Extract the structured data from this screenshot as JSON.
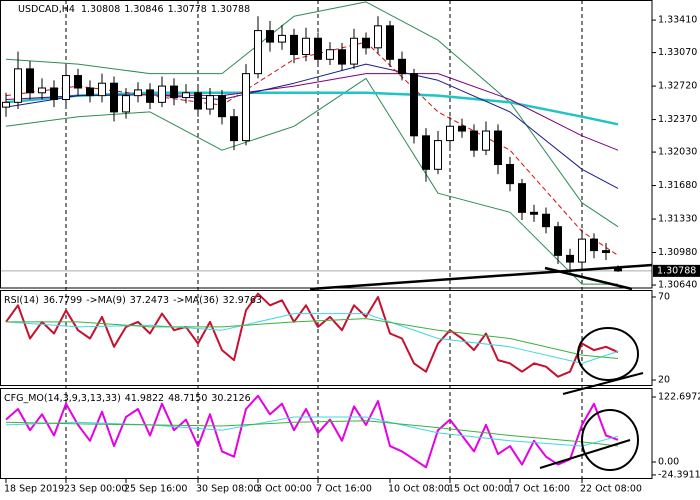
{
  "chart_data": [
    {
      "type": "candlestick",
      "title": "USDCAD,H4",
      "categories": [
        "18 Sep 2019",
        null,
        null,
        null,
        null,
        "23 Sep 00:00",
        null,
        null,
        null,
        null,
        "25 Sep 16:00",
        null,
        null,
        null,
        null,
        null,
        "30 Sep 08:00",
        null,
        null,
        null,
        null,
        "3 Oct 00:00",
        null,
        null,
        null,
        null,
        "7 Oct 16:00",
        null,
        null,
        null,
        null,
        null,
        "10 Oct 08:00",
        null,
        null,
        null,
        null,
        "15 Oct 00:00",
        null,
        null,
        null,
        null,
        "17 Oct 16:00",
        null,
        null,
        null,
        null,
        null,
        "22 Oct 08:00",
        null,
        null,
        null
      ],
      "open": [
        1.325,
        1.3255,
        1.329,
        1.3265,
        1.327,
        1.3258,
        1.3283,
        1.327,
        1.3262,
        1.3275,
        1.3245,
        1.3262,
        1.3268,
        1.3255,
        1.3272,
        1.326,
        1.3265,
        1.3248,
        1.3262,
        1.324,
        1.3215,
        1.3285,
        1.333,
        1.3318,
        1.3325,
        1.3305,
        1.3322,
        1.33,
        1.331,
        1.3295,
        1.3322,
        1.3312,
        1.3335,
        1.33,
        1.3285,
        1.322,
        1.3185,
        1.3215,
        1.323,
        1.3225,
        1.3205,
        1.3225,
        1.319,
        1.317,
        1.314,
        1.3138,
        1.3125,
        1.3095,
        1.3088,
        1.3112,
        1.31,
        1.30808
      ],
      "high": [
        1.3265,
        1.3308,
        1.3298,
        1.328,
        1.3278,
        1.3293,
        1.329,
        1.3278,
        1.3285,
        1.3282,
        1.327,
        1.3276,
        1.3275,
        1.3282,
        1.328,
        1.3274,
        1.3272,
        1.327,
        1.3268,
        1.3248,
        1.3295,
        1.3345,
        1.334,
        1.3336,
        1.3332,
        1.3333,
        1.3328,
        1.3318,
        1.3317,
        1.3332,
        1.3328,
        1.3345,
        1.334,
        1.3308,
        1.329,
        1.3228,
        1.3225,
        1.324,
        1.3238,
        1.3232,
        1.3235,
        1.3232,
        1.3198,
        1.3175,
        1.3148,
        1.3145,
        1.313,
        1.3102,
        1.3122,
        1.3118,
        1.3108,
        1.30846
      ],
      "low": [
        1.324,
        1.3248,
        1.3258,
        1.3258,
        1.325,
        1.3252,
        1.3262,
        1.3255,
        1.3255,
        1.3235,
        1.3238,
        1.3255,
        1.3248,
        1.325,
        1.3252,
        1.3254,
        1.324,
        1.3242,
        1.3232,
        1.3205,
        1.321,
        1.328,
        1.3308,
        1.331,
        1.3296,
        1.3298,
        1.3292,
        1.3294,
        1.3288,
        1.329,
        1.3305,
        1.3306,
        1.3292,
        1.3278,
        1.3212,
        1.3172,
        1.318,
        1.3208,
        1.3218,
        1.3198,
        1.32,
        1.318,
        1.3162,
        1.3132,
        1.313,
        1.3118,
        1.3086,
        1.308,
        1.3082,
        1.3092,
        1.309,
        1.30778
      ],
      "close": [
        1.3255,
        1.329,
        1.3265,
        1.327,
        1.3258,
        1.3283,
        1.327,
        1.3262,
        1.3275,
        1.3245,
        1.3262,
        1.3268,
        1.3255,
        1.3272,
        1.326,
        1.3265,
        1.3248,
        1.3262,
        1.324,
        1.3215,
        1.3285,
        1.333,
        1.3318,
        1.3325,
        1.3305,
        1.3322,
        1.33,
        1.331,
        1.3295,
        1.3322,
        1.3312,
        1.3335,
        1.33,
        1.3285,
        1.322,
        1.3185,
        1.3215,
        1.323,
        1.3225,
        1.3205,
        1.3225,
        1.319,
        1.317,
        1.314,
        1.3138,
        1.3125,
        1.3095,
        1.3088,
        1.3112,
        1.31,
        1.3098,
        1.30788
      ],
      "series": [
        {
          "color": "#2e8b57",
          "x": [
            0,
            6,
            12,
            18,
            24,
            30,
            36,
            42,
            48,
            51
          ],
          "values": [
            1.33,
            1.3295,
            1.3285,
            1.3285,
            1.3345,
            1.336,
            1.332,
            1.3255,
            1.315,
            1.3125
          ]
        },
        {
          "color": "#2e8b57",
          "x": [
            0,
            6,
            12,
            18,
            24,
            30,
            36,
            42,
            48,
            51
          ],
          "values": [
            1.323,
            1.324,
            1.3245,
            1.3205,
            1.323,
            1.328,
            1.316,
            1.314,
            1.3065,
            1.3065
          ]
        },
        {
          "color": "#1fc4c4",
          "x": [
            0,
            6,
            12,
            18,
            24,
            30,
            36,
            42,
            48,
            51
          ],
          "values": [
            1.3255,
            1.3262,
            1.3265,
            1.3265,
            1.3265,
            1.3265,
            1.3262,
            1.3255,
            1.324,
            1.3232
          ]
        },
        {
          "color": "#800080",
          "x": [
            0,
            6,
            12,
            18,
            24,
            30,
            36,
            42,
            48,
            51
          ],
          "values": [
            1.3258,
            1.3262,
            1.3263,
            1.3262,
            1.3272,
            1.3285,
            1.3285,
            1.3258,
            1.322,
            1.3205
          ]
        },
        {
          "color": "#1a1a8c",
          "x": [
            0,
            6,
            12,
            18,
            24,
            30,
            36,
            42,
            48,
            51
          ],
          "values": [
            1.325,
            1.3262,
            1.3263,
            1.3258,
            1.3275,
            1.3295,
            1.3278,
            1.3245,
            1.3185,
            1.3165
          ]
        },
        {
          "color": "#d01010",
          "x": [
            0,
            6,
            12,
            18,
            24,
            30,
            36,
            42,
            48,
            51
          ],
          "values": [
            1.3262,
            1.3272,
            1.3262,
            1.3252,
            1.33,
            1.3318,
            1.3245,
            1.3205,
            1.312,
            1.3095
          ]
        }
      ],
      "ylim": [
        1.30609,
        1.3362
      ],
      "yticks": [
        {
          "value": 1.3341,
          "label": "1.33410"
        },
        {
          "value": 1.3307,
          "label": "1.33070"
        },
        {
          "value": 1.3272,
          "label": "1.32720"
        },
        {
          "value": 1.3237,
          "label": "1.32370"
        },
        {
          "value": 1.3203,
          "label": "1.32030"
        },
        {
          "value": 1.3168,
          "label": "1.31680"
        },
        {
          "value": 1.3133,
          "label": "1.31330"
        },
        {
          "value": 1.3098,
          "label": "1.30980"
        },
        {
          "value": 1.3064,
          "label": "1.30640"
        }
      ],
      "grid": true
    },
    {
      "type": "line",
      "series": [
        {
          "name": "RSI(14)",
          "color": "#c8102e",
          "values": [
            55,
            65,
            45,
            55,
            48,
            62,
            50,
            45,
            58,
            40,
            52,
            55,
            48,
            60,
            50,
            52,
            42,
            55,
            38,
            32,
            62,
            72,
            65,
            68,
            55,
            65,
            52,
            58,
            50,
            65,
            58,
            70,
            48,
            45,
            30,
            25,
            42,
            50,
            45,
            38,
            48,
            32,
            30,
            25,
            30,
            28,
            22,
            25,
            42,
            38,
            40,
            36.7799
          ]
        },
        {
          "name": "->MA(9)",
          "color": "#40d8e0",
          "x": [
            0,
            6,
            12,
            18,
            24,
            30,
            36,
            42,
            48,
            51
          ],
          "values": [
            55,
            52,
            53,
            50,
            60,
            60,
            45,
            40,
            30,
            37.2473
          ]
        },
        {
          "name": "->MA(36)",
          "color": "#3cb043",
          "x": [
            0,
            6,
            12,
            18,
            24,
            30,
            36,
            42,
            48,
            51
          ],
          "values": [
            55,
            55,
            52,
            52,
            55,
            57,
            50,
            45,
            35,
            32.9763
          ]
        }
      ],
      "ylim": [
        16.4,
        74.2
      ],
      "yticks": [
        70,
        20
      ]
    },
    {
      "type": "line",
      "title": "CFG_MO(14,3,9,3,13,33)",
      "series": [
        {
          "color": "#e600e6",
          "values": [
            80,
            100,
            60,
            90,
            50,
            110,
            70,
            40,
            95,
            30,
            85,
            100,
            50,
            110,
            60,
            80,
            30,
            90,
            20,
            10,
            100,
            125,
            90,
            110,
            60,
            100,
            55,
            80,
            40,
            105,
            70,
            115,
            30,
            20,
            5,
            -10,
            60,
            80,
            50,
            20,
            70,
            15,
            30,
            -5,
            40,
            10,
            -5,
            5,
            70,
            110,
            50,
            41.9822
          ]
        },
        {
          "color": "#40d8e0",
          "x": [
            0,
            6,
            12,
            18,
            24,
            30,
            36,
            42,
            48,
            51
          ],
          "values": [
            70,
            75,
            70,
            60,
            85,
            85,
            55,
            40,
            30,
            48.715
          ],
          "value_labels": [
            null,
            null,
            null,
            null,
            null,
            null,
            null,
            null,
            null,
            "48.7150"
          ]
        },
        {
          "color": "#3cb043",
          "x": [
            0,
            6,
            12,
            18,
            24,
            30,
            36,
            42,
            48,
            51
          ],
          "values": [
            75,
            72,
            70,
            68,
            75,
            78,
            65,
            50,
            38,
            30.2126
          ]
        }
      ],
      "ylim": [
        -32.1,
        139.7
      ],
      "yticks": [
        122.6972,
        {
          "value": 0,
          "label": "0.00"
        },
        -24.3911
      ]
    }
  ]
}
